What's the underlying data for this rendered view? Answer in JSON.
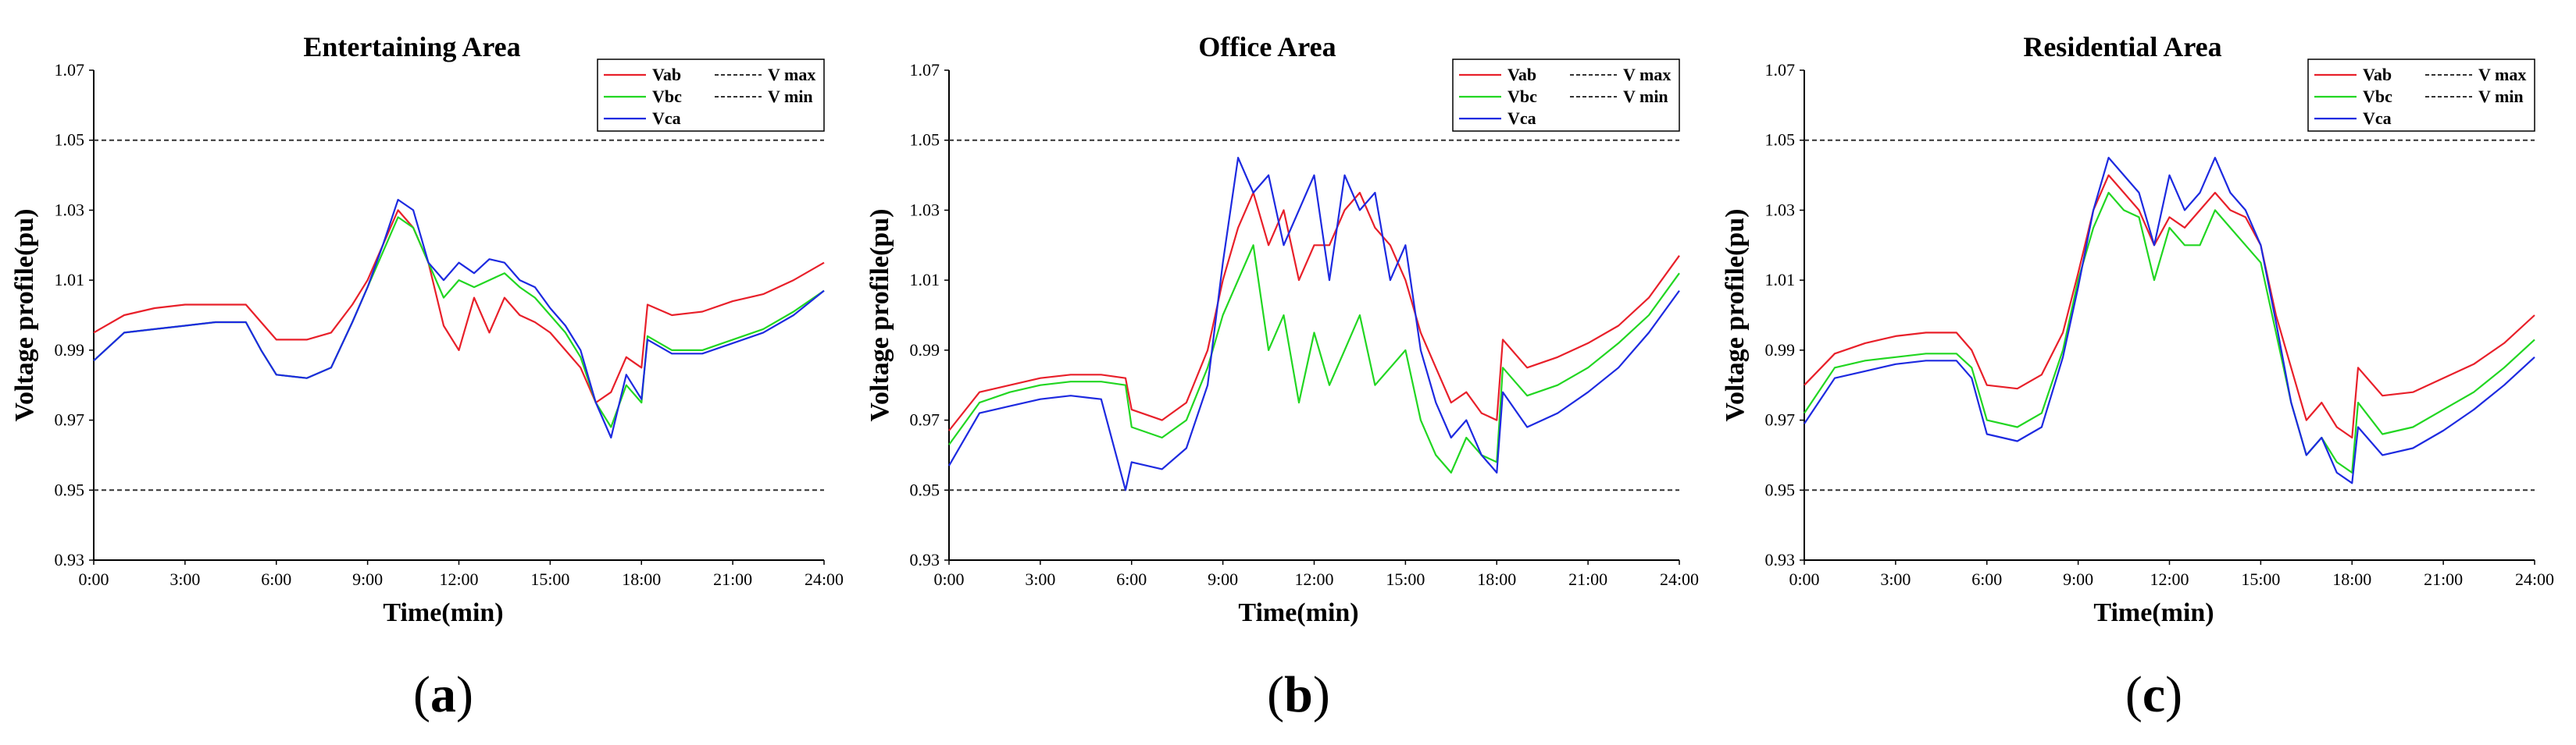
{
  "chart_data": [
    {
      "type": "line",
      "title": "Entertaining Area",
      "caption_letter": "a",
      "xlabel": "Time(min)",
      "ylabel": "Voltage profile(pu)",
      "x_ticks": [
        "0:00",
        "3:00",
        "6:00",
        "9:00",
        "12:00",
        "15:00",
        "18:00",
        "21:00",
        "24:00"
      ],
      "y_ticks": [
        "0.93",
        "0.95",
        "0.97",
        "0.99",
        "1.01",
        "1.03",
        "1.05",
        "1.07"
      ],
      "xlim_hours": [
        0,
        24
      ],
      "ylim": [
        0.93,
        1.07
      ],
      "legend_position": "top-right",
      "reference_lines": [
        {
          "name": "V max",
          "value": 1.05,
          "style": "dashed"
        },
        {
          "name": "V min",
          "value": 0.95,
          "style": "dashed"
        }
      ],
      "series": [
        {
          "name": "Vab",
          "color": "#e8202a",
          "x": [
            0,
            1,
            2,
            3,
            4,
            5,
            5.5,
            6,
            7,
            7.8,
            8.5,
            9,
            9.5,
            10,
            10.5,
            11,
            11.5,
            12,
            12.5,
            13,
            13.5,
            14,
            14.5,
            15,
            15.5,
            16,
            16.5,
            17,
            17.5,
            18,
            18.2,
            19,
            20,
            21,
            22,
            23,
            24
          ],
          "y": [
            0.995,
            1.0,
            1.002,
            1.003,
            1.003,
            1.003,
            0.998,
            0.993,
            0.993,
            0.995,
            1.003,
            1.01,
            1.02,
            1.03,
            1.025,
            1.015,
            0.997,
            0.99,
            1.005,
            0.995,
            1.005,
            1.0,
            0.998,
            0.995,
            0.99,
            0.985,
            0.975,
            0.978,
            0.988,
            0.985,
            1.003,
            1.0,
            1.001,
            1.004,
            1.006,
            1.01,
            1.015
          ]
        },
        {
          "name": "Vbc",
          "color": "#22d622",
          "x": [
            0,
            1,
            2,
            3,
            4,
            5,
            5.5,
            6,
            7,
            7.8,
            8.5,
            9,
            9.5,
            10,
            10.5,
            11,
            11.5,
            12,
            12.5,
            13,
            13.5,
            14,
            14.5,
            15,
            15.5,
            16,
            16.5,
            17,
            17.5,
            18,
            18.2,
            19,
            20,
            21,
            22,
            23,
            24
          ],
          "y": [
            0.987,
            0.995,
            0.996,
            0.997,
            0.998,
            0.998,
            0.99,
            0.983,
            0.982,
            0.985,
            0.998,
            1.008,
            1.018,
            1.028,
            1.025,
            1.015,
            1.005,
            1.01,
            1.008,
            1.01,
            1.012,
            1.008,
            1.005,
            1.0,
            0.995,
            0.988,
            0.975,
            0.968,
            0.98,
            0.975,
            0.994,
            0.99,
            0.99,
            0.993,
            0.996,
            1.001,
            1.007
          ]
        },
        {
          "name": "Vca",
          "color": "#1d2ae0",
          "x": [
            0,
            1,
            2,
            3,
            4,
            5,
            5.5,
            6,
            7,
            7.8,
            8.5,
            9,
            9.5,
            10,
            10.5,
            11,
            11.5,
            12,
            12.5,
            13,
            13.5,
            14,
            14.5,
            15,
            15.5,
            16,
            16.5,
            17,
            17.5,
            18,
            18.2,
            19,
            20,
            21,
            22,
            23,
            24
          ],
          "y": [
            0.987,
            0.995,
            0.996,
            0.997,
            0.998,
            0.998,
            0.99,
            0.983,
            0.982,
            0.985,
            0.998,
            1.008,
            1.02,
            1.033,
            1.03,
            1.015,
            1.01,
            1.015,
            1.012,
            1.016,
            1.015,
            1.01,
            1.008,
            1.002,
            0.997,
            0.99,
            0.975,
            0.965,
            0.983,
            0.976,
            0.993,
            0.989,
            0.989,
            0.992,
            0.995,
            1.0,
            1.007
          ]
        }
      ]
    },
    {
      "type": "line",
      "title": "Office Area",
      "caption_letter": "b",
      "xlabel": "Time(min)",
      "ylabel": "Voltage profile(pu)",
      "x_ticks": [
        "0:00",
        "3:00",
        "6:00",
        "9:00",
        "12:00",
        "15:00",
        "18:00",
        "21:00",
        "24:00"
      ],
      "y_ticks": [
        "0.93",
        "0.95",
        "0.97",
        "0.99",
        "1.01",
        "1.03",
        "1.05",
        "1.07"
      ],
      "xlim_hours": [
        0,
        24
      ],
      "ylim": [
        0.93,
        1.07
      ],
      "legend_position": "top-right",
      "reference_lines": [
        {
          "name": "V max",
          "value": 1.05,
          "style": "dashed"
        },
        {
          "name": "V min",
          "value": 0.95,
          "style": "dashed"
        }
      ],
      "series": [
        {
          "name": "Vab",
          "color": "#e8202a",
          "x": [
            0,
            1,
            2,
            3,
            4,
            5,
            5.8,
            6,
            7,
            7.8,
            8.5,
            9,
            9.5,
            10,
            10.5,
            11,
            11.5,
            12,
            12.5,
            13,
            13.5,
            14,
            14.5,
            15,
            15.5,
            16,
            16.5,
            17,
            17.5,
            18,
            18.2,
            19,
            20,
            21,
            22,
            23,
            24
          ],
          "y": [
            0.967,
            0.978,
            0.98,
            0.982,
            0.983,
            0.983,
            0.982,
            0.973,
            0.97,
            0.975,
            0.99,
            1.01,
            1.025,
            1.035,
            1.02,
            1.03,
            1.01,
            1.02,
            1.02,
            1.03,
            1.035,
            1.025,
            1.02,
            1.01,
            0.995,
            0.985,
            0.975,
            0.978,
            0.972,
            0.97,
            0.993,
            0.985,
            0.988,
            0.992,
            0.997,
            1.005,
            1.017
          ]
        },
        {
          "name": "Vbc",
          "color": "#22d622",
          "x": [
            0,
            1,
            2,
            3,
            4,
            5,
            5.8,
            6,
            7,
            7.8,
            8.5,
            9,
            9.5,
            10,
            10.5,
            11,
            11.5,
            12,
            12.5,
            13,
            13.5,
            14,
            14.5,
            15,
            15.5,
            16,
            16.5,
            17,
            17.5,
            18,
            18.2,
            19,
            20,
            21,
            22,
            23,
            24
          ],
          "y": [
            0.963,
            0.975,
            0.978,
            0.98,
            0.981,
            0.981,
            0.98,
            0.968,
            0.965,
            0.97,
            0.985,
            1.0,
            1.01,
            1.02,
            0.99,
            1.0,
            0.975,
            0.995,
            0.98,
            0.99,
            1.0,
            0.98,
            0.985,
            0.99,
            0.97,
            0.96,
            0.955,
            0.965,
            0.96,
            0.958,
            0.985,
            0.977,
            0.98,
            0.985,
            0.992,
            1.0,
            1.012
          ]
        },
        {
          "name": "Vca",
          "color": "#1d2ae0",
          "x": [
            0,
            1,
            2,
            3,
            4,
            5,
            5.8,
            6,
            7,
            7.8,
            8.5,
            9,
            9.5,
            10,
            10.5,
            11,
            11.5,
            12,
            12.5,
            13,
            13.5,
            14,
            14.5,
            15,
            15.5,
            16,
            16.5,
            17,
            17.5,
            18,
            18.2,
            19,
            20,
            21,
            22,
            23,
            24
          ],
          "y": [
            0.957,
            0.972,
            0.974,
            0.976,
            0.977,
            0.976,
            0.95,
            0.958,
            0.956,
            0.962,
            0.98,
            1.015,
            1.045,
            1.035,
            1.04,
            1.02,
            1.03,
            1.04,
            1.01,
            1.04,
            1.03,
            1.035,
            1.01,
            1.02,
            0.99,
            0.975,
            0.965,
            0.97,
            0.96,
            0.955,
            0.978,
            0.968,
            0.972,
            0.978,
            0.985,
            0.995,
            1.007
          ]
        }
      ]
    },
    {
      "type": "line",
      "title": "Residential Area",
      "caption_letter": "c",
      "xlabel": "Time(min)",
      "ylabel": "Voltage profile(pu)",
      "x_ticks": [
        "0:00",
        "3:00",
        "6:00",
        "9:00",
        "12:00",
        "15:00",
        "18:00",
        "21:00",
        "24:00"
      ],
      "y_ticks": [
        "0.93",
        "0.95",
        "0.97",
        "0.99",
        "1.01",
        "1.03",
        "1.05",
        "1.07"
      ],
      "xlim_hours": [
        0,
        24
      ],
      "ylim": [
        0.93,
        1.07
      ],
      "legend_position": "top-right",
      "reference_lines": [
        {
          "name": "V max",
          "value": 1.05,
          "style": "dashed"
        },
        {
          "name": "V min",
          "value": 0.95,
          "style": "dashed"
        }
      ],
      "series": [
        {
          "name": "Vab",
          "color": "#e8202a",
          "x": [
            0,
            1,
            2,
            3,
            4,
            5,
            5.5,
            6,
            7,
            7.8,
            8.5,
            9,
            9.5,
            10,
            10.5,
            11,
            11.5,
            12,
            12.5,
            13,
            13.5,
            14,
            14.5,
            15,
            15.5,
            16,
            16.5,
            17,
            17.5,
            18,
            18.2,
            19,
            20,
            21,
            22,
            23,
            24
          ],
          "y": [
            0.98,
            0.989,
            0.992,
            0.994,
            0.995,
            0.995,
            0.99,
            0.98,
            0.979,
            0.983,
            0.995,
            1.012,
            1.03,
            1.04,
            1.035,
            1.03,
            1.02,
            1.028,
            1.025,
            1.03,
            1.035,
            1.03,
            1.028,
            1.02,
            1.0,
            0.985,
            0.97,
            0.975,
            0.968,
            0.965,
            0.985,
            0.977,
            0.978,
            0.982,
            0.986,
            0.992,
            1.0
          ]
        },
        {
          "name": "Vbc",
          "color": "#22d622",
          "x": [
            0,
            1,
            2,
            3,
            4,
            5,
            5.5,
            6,
            7,
            7.8,
            8.5,
            9,
            9.5,
            10,
            10.5,
            11,
            11.5,
            12,
            12.5,
            13,
            13.5,
            14,
            14.5,
            15,
            15.5,
            16,
            16.5,
            17,
            17.5,
            18,
            18.2,
            19,
            20,
            21,
            22,
            23,
            24
          ],
          "y": [
            0.972,
            0.985,
            0.987,
            0.988,
            0.989,
            0.989,
            0.985,
            0.97,
            0.968,
            0.972,
            0.99,
            1.01,
            1.025,
            1.035,
            1.03,
            1.028,
            1.01,
            1.025,
            1.02,
            1.02,
            1.03,
            1.025,
            1.02,
            1.015,
            0.995,
            0.975,
            0.96,
            0.965,
            0.958,
            0.955,
            0.975,
            0.966,
            0.968,
            0.973,
            0.978,
            0.985,
            0.993
          ]
        },
        {
          "name": "Vca",
          "color": "#1d2ae0",
          "x": [
            0,
            1,
            2,
            3,
            4,
            5,
            5.5,
            6,
            7,
            7.8,
            8.5,
            9,
            9.5,
            10,
            10.5,
            11,
            11.5,
            12,
            12.5,
            13,
            13.5,
            14,
            14.5,
            15,
            15.5,
            16,
            16.5,
            17,
            17.5,
            18,
            18.2,
            19,
            20,
            21,
            22,
            23,
            24
          ],
          "y": [
            0.969,
            0.982,
            0.984,
            0.986,
            0.987,
            0.987,
            0.982,
            0.966,
            0.964,
            0.968,
            0.988,
            1.008,
            1.03,
            1.045,
            1.04,
            1.035,
            1.02,
            1.04,
            1.03,
            1.035,
            1.045,
            1.035,
            1.03,
            1.02,
            0.998,
            0.975,
            0.96,
            0.965,
            0.955,
            0.952,
            0.968,
            0.96,
            0.962,
            0.967,
            0.973,
            0.98,
            0.988
          ]
        }
      ]
    }
  ]
}
